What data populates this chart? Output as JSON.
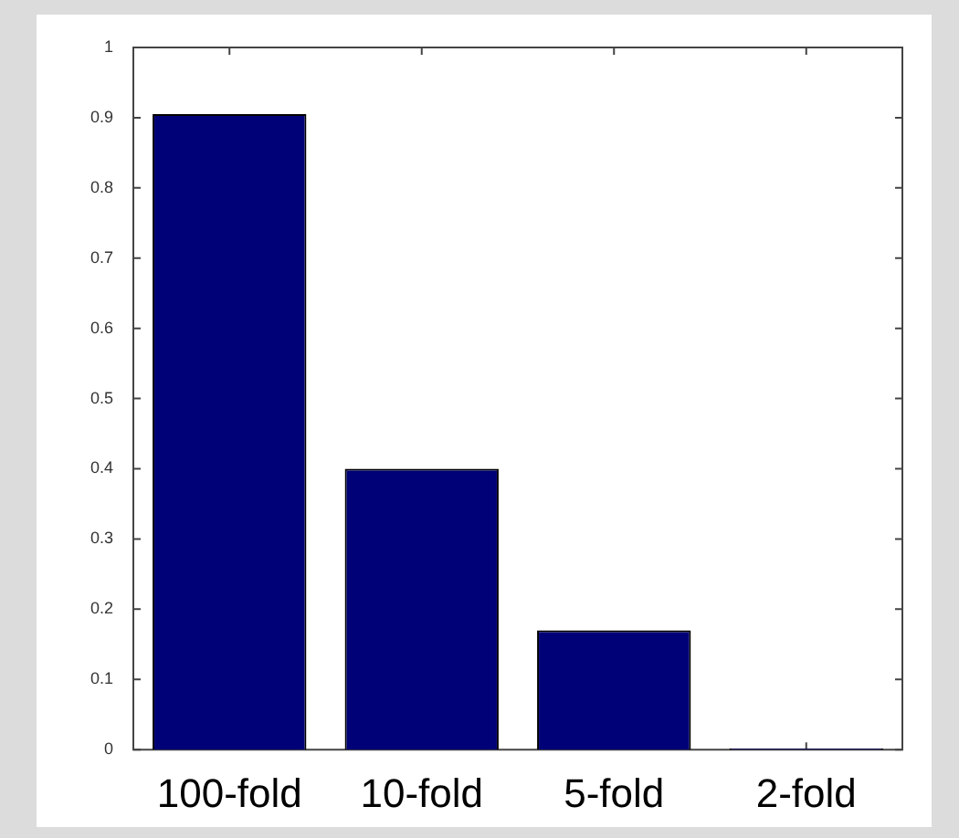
{
  "chart_data": {
    "type": "bar",
    "categories": [
      "100-fold",
      "10-fold",
      "5-fold",
      "2-fold"
    ],
    "values": [
      0.905,
      0.4,
      0.17,
      0.002
    ],
    "color": "#000077",
    "ylim": [
      0,
      1
    ],
    "yticks": [
      0,
      0.1,
      0.2,
      0.3,
      0.4,
      0.5,
      0.6,
      0.7,
      0.8,
      0.9,
      1
    ],
    "grid": false,
    "legend": false
  }
}
